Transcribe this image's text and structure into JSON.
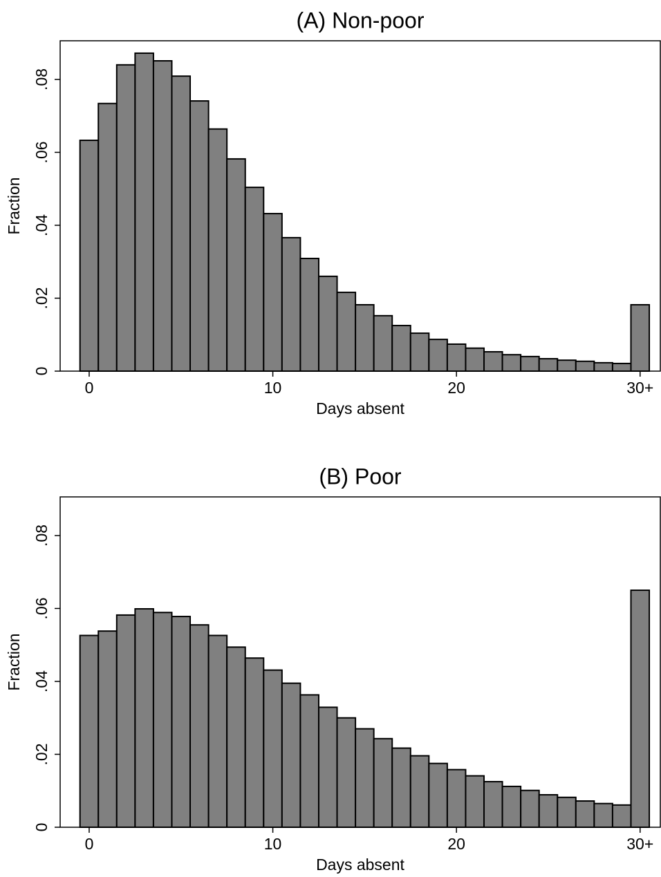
{
  "chart_data": [
    {
      "type": "bar",
      "title": "(A) Non-poor",
      "x_label": "Days absent",
      "y_label": "Fraction",
      "x": [
        0,
        1,
        2,
        3,
        4,
        5,
        6,
        7,
        8,
        9,
        10,
        11,
        12,
        13,
        14,
        15,
        16,
        17,
        18,
        19,
        20,
        21,
        22,
        23,
        24,
        25,
        26,
        27,
        28,
        29,
        30
      ],
      "values": [
        0.0633,
        0.0734,
        0.084,
        0.0872,
        0.0851,
        0.0809,
        0.0741,
        0.0664,
        0.0582,
        0.0504,
        0.0432,
        0.0366,
        0.0309,
        0.026,
        0.0216,
        0.0182,
        0.0152,
        0.0125,
        0.0104,
        0.0087,
        0.0074,
        0.0063,
        0.0053,
        0.0045,
        0.004,
        0.0034,
        0.003,
        0.0027,
        0.0023,
        0.0021,
        0.0182
      ],
      "color": "#808080",
      "xlim": [
        -1.58,
        31.1
      ],
      "xticks": [
        0,
        10,
        20,
        {
          "value": 30,
          "label": "30+"
        }
      ],
      "ylim": [
        0,
        0.0906
      ],
      "yticks": [
        0,
        {
          "value": 0.02,
          "label": ".02"
        },
        {
          "value": 0.04,
          "label": ".04"
        },
        {
          "value": 0.06,
          "label": ".06"
        },
        {
          "value": 0.08,
          "label": ".08"
        }
      ],
      "grid": false
    },
    {
      "type": "bar",
      "title": "(B) Poor",
      "x_label": "Days absent",
      "y_label": "Fraction",
      "x": [
        0,
        1,
        2,
        3,
        4,
        5,
        6,
        7,
        8,
        9,
        10,
        11,
        12,
        13,
        14,
        15,
        16,
        17,
        18,
        19,
        20,
        21,
        22,
        23,
        24,
        25,
        26,
        27,
        28,
        29,
        30
      ],
      "values": [
        0.0526,
        0.0538,
        0.0582,
        0.0599,
        0.0589,
        0.0578,
        0.0555,
        0.0526,
        0.0494,
        0.0464,
        0.0431,
        0.0395,
        0.0363,
        0.0329,
        0.03,
        0.027,
        0.0243,
        0.0217,
        0.0196,
        0.0175,
        0.0158,
        0.0141,
        0.0125,
        0.0112,
        0.0101,
        0.0089,
        0.0082,
        0.0072,
        0.0065,
        0.0061,
        0.065
      ],
      "color": "#808080",
      "xlim": [
        -1.58,
        31.1
      ],
      "xticks": [
        0,
        10,
        20,
        {
          "value": 30,
          "label": "30+"
        }
      ],
      "ylim": [
        0,
        0.0906
      ],
      "yticks": [
        0,
        {
          "value": 0.02,
          "label": ".02"
        },
        {
          "value": 0.04,
          "label": ".04"
        },
        {
          "value": 0.06,
          "label": ".06"
        },
        {
          "value": 0.08,
          "label": ".08"
        }
      ],
      "grid": false
    }
  ]
}
